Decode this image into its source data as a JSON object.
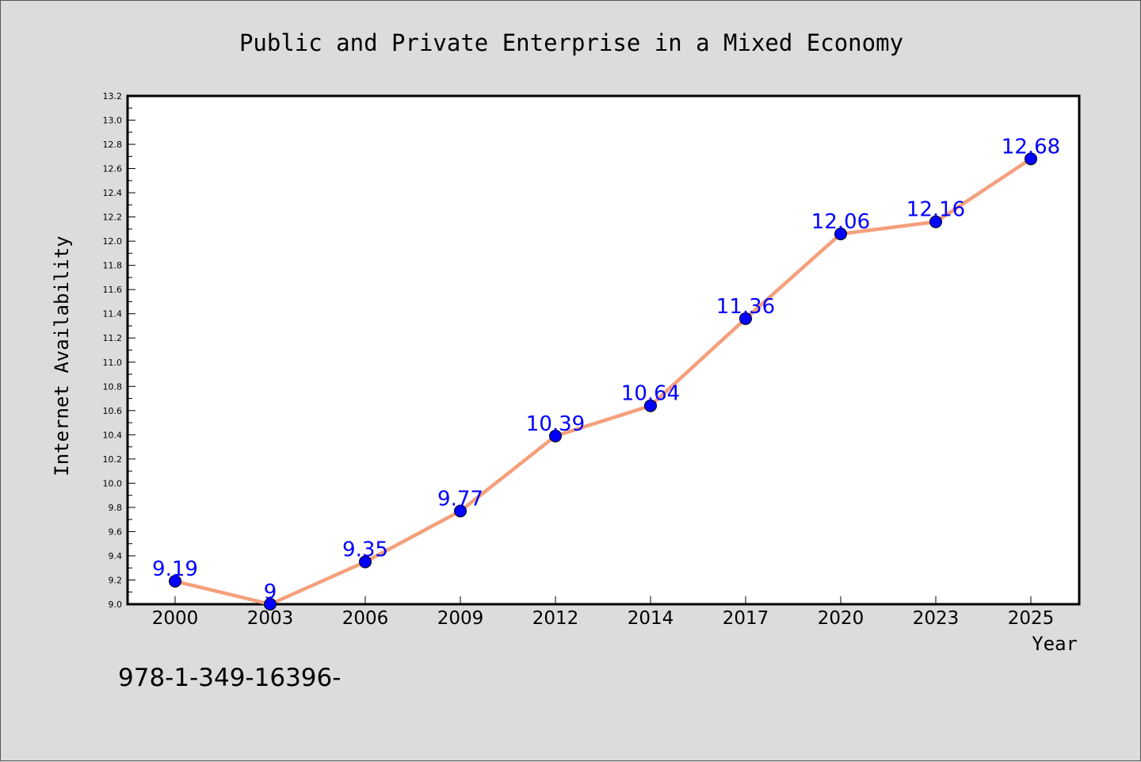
{
  "chart_data": {
    "type": "line",
    "title": "Public and Private Enterprise in a Mixed Economy",
    "xlabel": "Year",
    "ylabel": "Internet Availability",
    "categories": [
      "2000",
      "2003",
      "2006",
      "2009",
      "2012",
      "2014",
      "2017",
      "2020",
      "2023",
      "2025"
    ],
    "values": [
      9.19,
      9.0,
      9.35,
      9.77,
      10.39,
      10.64,
      11.36,
      12.06,
      12.16,
      12.68
    ],
    "data_labels": [
      "9.19",
      "9",
      "9.35",
      "9.77",
      "10.39",
      "10.64",
      "11.36",
      "12.06",
      "12.16",
      "12.68"
    ],
    "ylim": [
      9.0,
      13.2
    ],
    "yticks": [
      "9.0",
      "9.2",
      "9.4",
      "9.6",
      "9.8",
      "10.0",
      "10.2",
      "10.4",
      "10.6",
      "10.8",
      "11.0",
      "11.2",
      "11.4",
      "11.6",
      "11.8",
      "12.0",
      "12.2",
      "12.4",
      "12.6",
      "12.8",
      "13.0",
      "13.2"
    ],
    "grid": false,
    "line_color": "#f4a07c",
    "marker_color": "#0000ff",
    "label_color": "#0000ff"
  },
  "footer_text": "978-1-349-16396-"
}
